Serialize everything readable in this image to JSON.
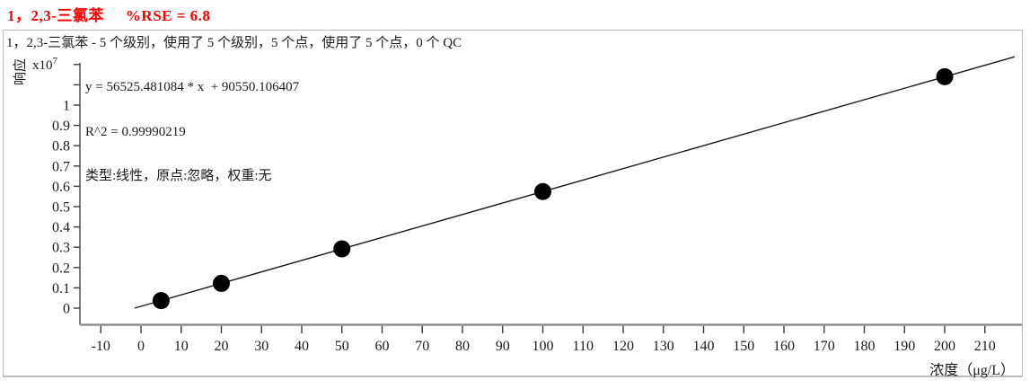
{
  "header": {
    "compound": "1，2,3-三氯苯",
    "rse": "%RSE = 6.8"
  },
  "chart_info": {
    "subtitle": "1，2,3-三氯苯 - 5 个级别，使用了 5 个级别，5 个点，使用了 5 个点，0 个 QC"
  },
  "equation": {
    "line1": "y = 56525.481084 * x  + 90550.106407",
    "line2": "R^2 = 0.99990219",
    "line3": "类型:线性，原点:忽略，权重:无"
  },
  "axes": {
    "y_label": "响应",
    "y_multiplier_base": "x10",
    "y_multiplier_exp": "7",
    "x_label": "浓度（μg/L）"
  },
  "colors": {
    "title_red": "#ff0000",
    "text": "#1c1c1c",
    "axis_gray": "#8f8f8f",
    "tick_dark": "#3a3a3a",
    "line_black": "#1a1a1a",
    "point_black": "#000000",
    "box_border": "#bdbdbd"
  },
  "chart_data": {
    "type": "scatter",
    "title": "1，2,3-三氯苯 %RSE = 6.8",
    "subtitle": "1，2,3-三氯苯 - 5 个级别，使用了 5 个级别，5 个点，使用了 5 个点，0 个 QC",
    "xlabel": "浓度（μg/L）",
    "ylabel": "响应",
    "y_unit_multiplier": "x10^7",
    "points": [
      {
        "x": 5,
        "y_x1e7": 0.037
      },
      {
        "x": 20,
        "y_x1e7": 0.122
      },
      {
        "x": 50,
        "y_x1e7": 0.292
      },
      {
        "x": 100,
        "y_x1e7": 0.574
      },
      {
        "x": 200,
        "y_x1e7": 1.14
      }
    ],
    "fit": {
      "equation": "y = 56525.481084 * x  + 90550.106407",
      "slope": 56525.481084,
      "intercept": 90550.106407,
      "r_squared": 0.99990219,
      "rse_percent": 6.8,
      "curve_type": "线性",
      "origin": "忽略",
      "weight": "无"
    },
    "x_ticks": [
      -10,
      0,
      10,
      20,
      30,
      40,
      50,
      60,
      70,
      80,
      90,
      100,
      110,
      120,
      130,
      140,
      150,
      160,
      170,
      180,
      190,
      200,
      210
    ],
    "y_tick_labels": [
      "0",
      "0.1",
      "0.2",
      "0.3",
      "0.4",
      "0.5",
      "0.6",
      "0.7",
      "0.8",
      "0.9",
      "1"
    ],
    "y_minor_ticks": [
      1.1,
      1.2
    ],
    "x_range": [
      -15.2,
      219.3
    ],
    "y_range_x1e7": [
      -0.08,
      1.29
    ],
    "grid": false,
    "legend": false
  }
}
